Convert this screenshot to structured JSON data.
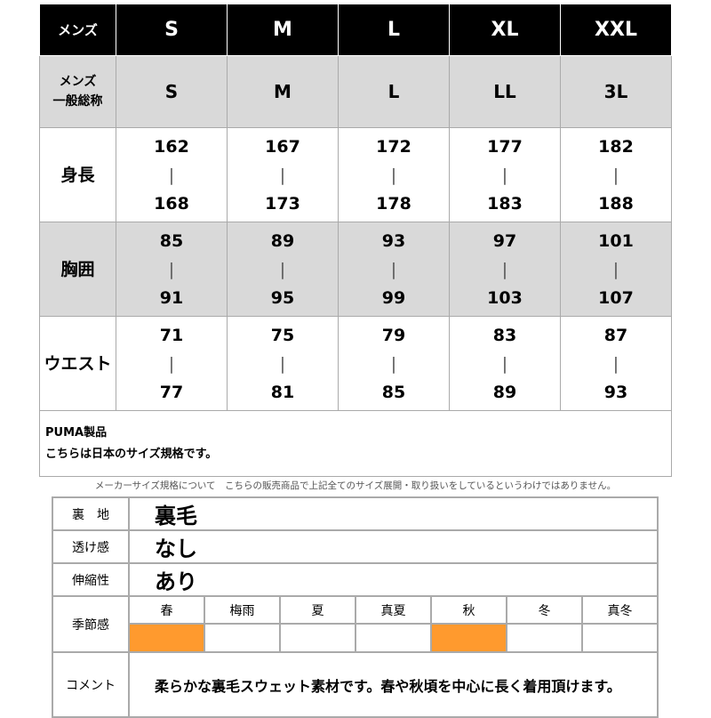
{
  "size_table": {
    "header": {
      "label": "メンズ",
      "sizes": [
        "S",
        "M",
        "L",
        "XL",
        "XXL"
      ]
    },
    "general_name": {
      "label": "メンズ\n一般総称",
      "values": [
        "S",
        "M",
        "L",
        "LL",
        "3L"
      ]
    },
    "rows": [
      {
        "label": "身長",
        "values": [
          [
            "162",
            "168"
          ],
          [
            "167",
            "173"
          ],
          [
            "172",
            "178"
          ],
          [
            "177",
            "183"
          ],
          [
            "182",
            "188"
          ]
        ]
      },
      {
        "label": "胸囲",
        "values": [
          [
            "85",
            "91"
          ],
          [
            "89",
            "95"
          ],
          [
            "93",
            "99"
          ],
          [
            "97",
            "103"
          ],
          [
            "101",
            "107"
          ]
        ]
      },
      {
        "label": "ウエスト",
        "values": [
          [
            "71",
            "77"
          ],
          [
            "75",
            "81"
          ],
          [
            "79",
            "85"
          ],
          [
            "83",
            "89"
          ],
          [
            "87",
            "93"
          ]
        ]
      }
    ],
    "range_separator": "|",
    "note_line1": "PUMA製品",
    "note_line2": "こちらは日本のサイズ規格です。"
  },
  "footnote": "メーカーサイズ規格について　こちらの販売商品で上記全てのサイズ展開・取り扱いをしているというわけではありません。",
  "spec": {
    "lining": {
      "label": "裏　地",
      "value": "裏毛"
    },
    "sheer": {
      "label": "透け感",
      "value": "なし"
    },
    "stretch": {
      "label": "伸縮性",
      "value": "あり"
    },
    "season": {
      "label": "季節感",
      "items": [
        {
          "name": "春",
          "active": true
        },
        {
          "name": "梅雨",
          "active": false
        },
        {
          "name": "夏",
          "active": false
        },
        {
          "name": "真夏",
          "active": false
        },
        {
          "name": "秋",
          "active": true
        },
        {
          "name": "冬",
          "active": false
        },
        {
          "name": "真冬",
          "active": false
        }
      ],
      "active_color": "#ff9a2e"
    },
    "comment": {
      "label": "コメント",
      "value": "柔らかな裏毛スウェット素材です。春や秋頃を中心に長く着用頂けます。"
    }
  }
}
